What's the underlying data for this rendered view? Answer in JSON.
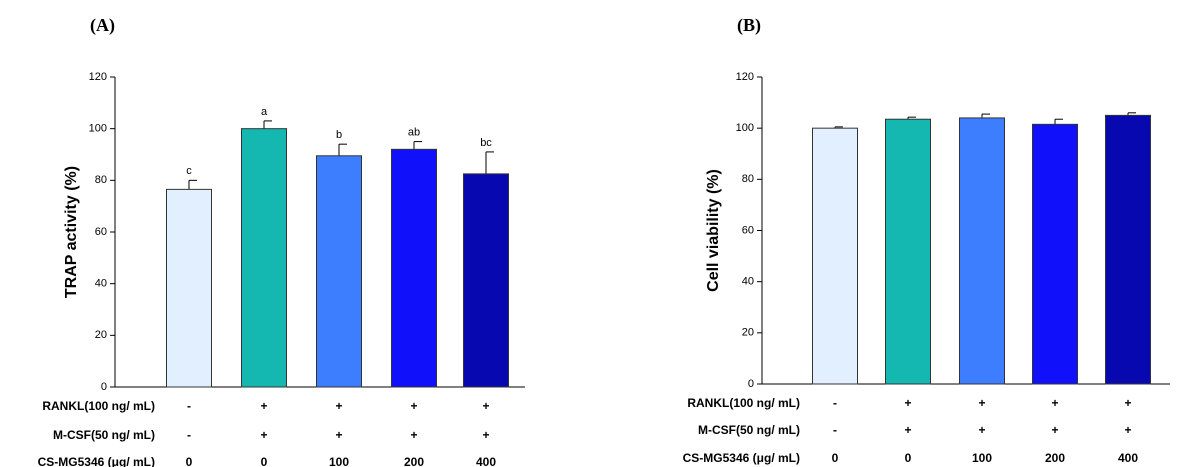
{
  "chart_data": [
    {
      "type": "bar",
      "title": "(A)",
      "y_label": "TRAP activity (%)",
      "values": [
        76.5,
        100,
        89.5,
        92,
        82.5
      ],
      "errors": [
        3.5,
        3,
        4.5,
        3,
        8.5
      ],
      "annotations": [
        "c",
        "a",
        "b",
        "ab",
        "bc"
      ],
      "colors": [
        "#e1efff",
        "#14b8b0",
        "#3d7dff",
        "#1010fa",
        "#0808b0"
      ],
      "ylim": [
        0,
        120
      ],
      "yticks": [
        0,
        20,
        40,
        60,
        80,
        100,
        120
      ],
      "treatments": [
        {
          "label": "RANKL(100 ng/ mL)",
          "values": [
            "-",
            "+",
            "+",
            "+",
            "+"
          ]
        },
        {
          "label": "M-CSF(50 ng/ mL)",
          "values": [
            "-",
            "+",
            "+",
            "+",
            "+"
          ]
        },
        {
          "label": "CS-MG5346 (μg/ mL)",
          "values": [
            "0",
            "0",
            "100",
            "200",
            "400"
          ]
        }
      ]
    },
    {
      "type": "bar",
      "title": "(B)",
      "y_label": "Cell viability (%)",
      "values": [
        100,
        103.5,
        104,
        101.5,
        105
      ],
      "errors": [
        0.5,
        0.8,
        1.5,
        2,
        1
      ],
      "colors": [
        "#e1efff",
        "#14b8b0",
        "#3d7dff",
        "#1010fa",
        "#0808b0"
      ],
      "ylim": [
        0,
        120
      ],
      "yticks": [
        0,
        20,
        40,
        60,
        80,
        100,
        120
      ],
      "treatments": [
        {
          "label": "RANKL(100 ng/ mL)",
          "values": [
            "-",
            "+",
            "+",
            "+",
            "+"
          ]
        },
        {
          "label": "M-CSF(50 ng/ mL)",
          "values": [
            "-",
            "+",
            "+",
            "+",
            "+"
          ]
        },
        {
          "label": "CS-MG5346 (μg/ mL)",
          "values": [
            "0",
            "0",
            "100",
            "200",
            "400"
          ]
        }
      ]
    }
  ]
}
